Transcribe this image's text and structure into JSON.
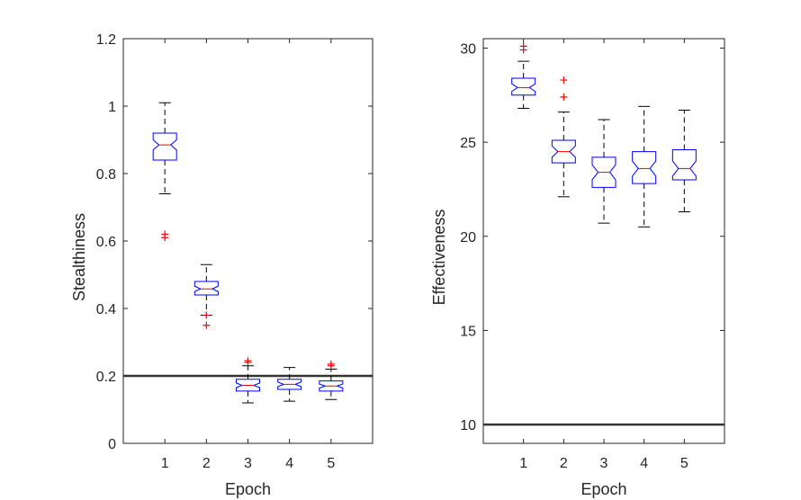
{
  "chart_data": [
    {
      "type": "boxplot",
      "notched": true,
      "xlabel": "Epoch",
      "ylabel": "Stealthiness",
      "categories": [
        "1",
        "2",
        "3",
        "4",
        "5"
      ],
      "ylim": [
        0,
        1.2
      ],
      "yticks": [
        0,
        0.2,
        0.4,
        0.6,
        0.8,
        1,
        1.2
      ],
      "ytick_labels": [
        "0",
        "0.2",
        "0.4",
        "0.6",
        "0.8",
        "1",
        "1.2"
      ],
      "reference_line": 0.2,
      "boxes": [
        {
          "epoch": "1",
          "q1": 0.84,
          "median": 0.885,
          "q3": 0.92,
          "notch_low": 0.87,
          "notch_high": 0.9,
          "whisker_low": 0.74,
          "whisker_high": 1.01,
          "outliers": [
            0.61,
            0.62
          ]
        },
        {
          "epoch": "2",
          "q1": 0.44,
          "median": 0.458,
          "q3": 0.48,
          "notch_low": 0.45,
          "notch_high": 0.466,
          "whisker_low": 0.38,
          "whisker_high": 0.53,
          "outliers": [
            0.35,
            0.38
          ]
        },
        {
          "epoch": "3",
          "q1": 0.155,
          "median": 0.172,
          "q3": 0.19,
          "notch_low": 0.165,
          "notch_high": 0.179,
          "whisker_low": 0.12,
          "whisker_high": 0.23,
          "outliers": [
            0.24,
            0.245
          ]
        },
        {
          "epoch": "4",
          "q1": 0.16,
          "median": 0.175,
          "q3": 0.19,
          "notch_low": 0.168,
          "notch_high": 0.182,
          "whisker_low": 0.125,
          "whisker_high": 0.225,
          "outliers": []
        },
        {
          "epoch": "5",
          "q1": 0.155,
          "median": 0.17,
          "q3": 0.185,
          "notch_low": 0.164,
          "notch_high": 0.176,
          "whisker_low": 0.13,
          "whisker_high": 0.22,
          "outliers": [
            0.23,
            0.235
          ]
        }
      ]
    },
    {
      "type": "boxplot",
      "notched": true,
      "xlabel": "Epoch",
      "ylabel": "Effectiveness",
      "categories": [
        "1",
        "2",
        "3",
        "4",
        "5"
      ],
      "ylim": [
        9,
        30.5
      ],
      "yticks": [
        10,
        15,
        20,
        25,
        30
      ],
      "ytick_labels": [
        "10",
        "15",
        "20",
        "25",
        "30"
      ],
      "reference_line": 10,
      "boxes": [
        {
          "epoch": "1",
          "q1": 27.5,
          "median": 27.9,
          "q3": 28.4,
          "notch_low": 27.7,
          "notch_high": 28.1,
          "whisker_low": 26.8,
          "whisker_high": 29.3,
          "outliers": [
            29.9,
            30.1
          ]
        },
        {
          "epoch": "2",
          "q1": 23.9,
          "median": 24.5,
          "q3": 25.1,
          "notch_low": 24.2,
          "notch_high": 24.8,
          "whisker_low": 22.1,
          "whisker_high": 26.6,
          "outliers": [
            27.4,
            28.3
          ]
        },
        {
          "epoch": "3",
          "q1": 22.6,
          "median": 23.4,
          "q3": 24.2,
          "notch_low": 23.0,
          "notch_high": 23.8,
          "whisker_low": 20.7,
          "whisker_high": 26.2,
          "outliers": []
        },
        {
          "epoch": "4",
          "q1": 22.8,
          "median": 23.6,
          "q3": 24.5,
          "notch_low": 23.2,
          "notch_high": 24.0,
          "whisker_low": 20.5,
          "whisker_high": 26.9,
          "outliers": []
        },
        {
          "epoch": "5",
          "q1": 23.0,
          "median": 23.6,
          "q3": 24.6,
          "notch_low": 23.2,
          "notch_high": 24.0,
          "whisker_low": 21.3,
          "whisker_high": 26.7,
          "outliers": []
        }
      ]
    }
  ]
}
